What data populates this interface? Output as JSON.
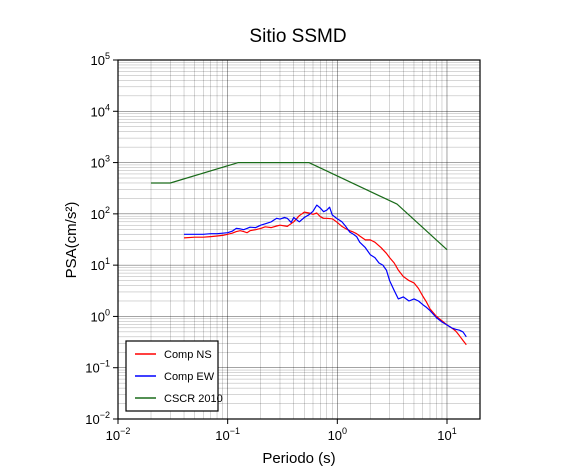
{
  "chart_data": {
    "type": "line",
    "title": "Sitio SSMD",
    "xlabel": "Periodo (s)",
    "ylabel": "PSA(cm/s²)",
    "x_scale": "log",
    "y_scale": "log",
    "xlim": [
      0.01,
      20
    ],
    "ylim": [
      0.01,
      100000
    ],
    "grid": true,
    "legend_position": "bottom-left",
    "x_ticks": [
      {
        "value": 0.01,
        "base": "10",
        "exp": "−2"
      },
      {
        "value": 0.1,
        "base": "10",
        "exp": "−1"
      },
      {
        "value": 1,
        "base": "10",
        "exp": "0"
      },
      {
        "value": 10,
        "base": "10",
        "exp": "1"
      }
    ],
    "y_ticks": [
      {
        "value": 0.01,
        "base": "10",
        "exp": "−2"
      },
      {
        "value": 0.1,
        "base": "10",
        "exp": "−1"
      },
      {
        "value": 1,
        "base": "10",
        "exp": "0"
      },
      {
        "value": 10,
        "base": "10",
        "exp": "1"
      },
      {
        "value": 100,
        "base": "10",
        "exp": "2"
      },
      {
        "value": 1000,
        "base": "10",
        "exp": "3"
      },
      {
        "value": 10000,
        "base": "10",
        "exp": "4"
      },
      {
        "value": 100000,
        "base": "10",
        "exp": "5"
      }
    ],
    "series": [
      {
        "name": "Comp NS",
        "color": "#ff0000",
        "points": [
          [
            0.04,
            34
          ],
          [
            0.05,
            35
          ],
          [
            0.06,
            35
          ],
          [
            0.07,
            36
          ],
          [
            0.08,
            37
          ],
          [
            0.09,
            38
          ],
          [
            0.1,
            40
          ],
          [
            0.11,
            42
          ],
          [
            0.12,
            45
          ],
          [
            0.13,
            47
          ],
          [
            0.14,
            45
          ],
          [
            0.15,
            43
          ],
          [
            0.16,
            47
          ],
          [
            0.18,
            49
          ],
          [
            0.2,
            52
          ],
          [
            0.22,
            56
          ],
          [
            0.25,
            54
          ],
          [
            0.28,
            58
          ],
          [
            0.3,
            60
          ],
          [
            0.35,
            57
          ],
          [
            0.4,
            70
          ],
          [
            0.45,
            92
          ],
          [
            0.5,
            108
          ],
          [
            0.55,
            104
          ],
          [
            0.6,
            98
          ],
          [
            0.65,
            104
          ],
          [
            0.7,
            88
          ],
          [
            0.75,
            82
          ],
          [
            0.8,
            82
          ],
          [
            0.9,
            80
          ],
          [
            1.0,
            68
          ],
          [
            1.1,
            57
          ],
          [
            1.2,
            51
          ],
          [
            1.3,
            47
          ],
          [
            1.4,
            44
          ],
          [
            1.5,
            41
          ],
          [
            1.6,
            37
          ],
          [
            1.8,
            31
          ],
          [
            2.0,
            31
          ],
          [
            2.2,
            28
          ],
          [
            2.5,
            22
          ],
          [
            2.8,
            17
          ],
          [
            3.0,
            14
          ],
          [
            3.3,
            11
          ],
          [
            3.6,
            8
          ],
          [
            4.0,
            6
          ],
          [
            4.5,
            5
          ],
          [
            5.0,
            4.5
          ],
          [
            5.5,
            3.5
          ],
          [
            6.0,
            2.5
          ],
          [
            6.5,
            1.9
          ],
          [
            7.0,
            1.4
          ],
          [
            8.0,
            1.0
          ],
          [
            9.0,
            0.82
          ],
          [
            10.0,
            0.68
          ],
          [
            11.0,
            0.6
          ],
          [
            12.0,
            0.52
          ],
          [
            13.0,
            0.42
          ],
          [
            14.0,
            0.34
          ],
          [
            15.0,
            0.28
          ]
        ]
      },
      {
        "name": "Comp EW",
        "color": "#0000ff",
        "points": [
          [
            0.04,
            40
          ],
          [
            0.05,
            40
          ],
          [
            0.06,
            40
          ],
          [
            0.07,
            41
          ],
          [
            0.08,
            41
          ],
          [
            0.09,
            42
          ],
          [
            0.1,
            43
          ],
          [
            0.11,
            46
          ],
          [
            0.12,
            52
          ],
          [
            0.13,
            51
          ],
          [
            0.14,
            49
          ],
          [
            0.15,
            52
          ],
          [
            0.16,
            55
          ],
          [
            0.18,
            54
          ],
          [
            0.2,
            60
          ],
          [
            0.22,
            64
          ],
          [
            0.25,
            70
          ],
          [
            0.28,
            82
          ],
          [
            0.3,
            79
          ],
          [
            0.33,
            85
          ],
          [
            0.35,
            82
          ],
          [
            0.38,
            68
          ],
          [
            0.4,
            85
          ],
          [
            0.45,
            70
          ],
          [
            0.5,
            85
          ],
          [
            0.55,
            96
          ],
          [
            0.6,
            112
          ],
          [
            0.65,
            148
          ],
          [
            0.7,
            130
          ],
          [
            0.75,
            110
          ],
          [
            0.8,
            118
          ],
          [
            0.85,
            135
          ],
          [
            0.9,
            95
          ],
          [
            1.0,
            80
          ],
          [
            1.1,
            70
          ],
          [
            1.2,
            56
          ],
          [
            1.3,
            44
          ],
          [
            1.4,
            40
          ],
          [
            1.5,
            36
          ],
          [
            1.6,
            28
          ],
          [
            1.8,
            22
          ],
          [
            2.0,
            16
          ],
          [
            2.2,
            14
          ],
          [
            2.4,
            11
          ],
          [
            2.6,
            10
          ],
          [
            2.8,
            8
          ],
          [
            3.0,
            5
          ],
          [
            3.3,
            3.2
          ],
          [
            3.6,
            2.2
          ],
          [
            4.0,
            2.4
          ],
          [
            4.5,
            2.0
          ],
          [
            5.0,
            2.2
          ],
          [
            5.5,
            2.0
          ],
          [
            6.0,
            1.7
          ],
          [
            6.5,
            1.5
          ],
          [
            7.0,
            1.3
          ],
          [
            8.0,
            0.95
          ],
          [
            9.0,
            0.78
          ],
          [
            10.0,
            0.68
          ],
          [
            11.0,
            0.6
          ],
          [
            12.0,
            0.56
          ],
          [
            13.0,
            0.54
          ],
          [
            14.0,
            0.5
          ],
          [
            15.0,
            0.4
          ]
        ]
      },
      {
        "name": "CSCR 2010",
        "color": "#1a6b1a",
        "points": [
          [
            0.02,
            400
          ],
          [
            0.03,
            400
          ],
          [
            0.125,
            1000
          ],
          [
            0.55,
            1000
          ],
          [
            3.5,
            155
          ],
          [
            10.0,
            20
          ]
        ]
      }
    ]
  }
}
